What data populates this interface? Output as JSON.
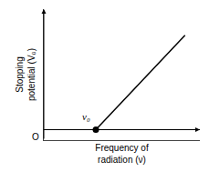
{
  "chart_data": {
    "type": "line",
    "xlabel": "Frequency of\nradiation (ν)",
    "ylabel": "Stopping\npotential (V₀)",
    "series": [
      {
        "type": "line",
        "x": [
          0.35,
          0.95
        ],
        "values": [
          0.0,
          0.72
        ],
        "color": "#000000"
      },
      {
        "type": "scatter",
        "x": [
          0.35
        ],
        "values": [
          0.0
        ],
        "color": "#000000",
        "marker": "circle"
      }
    ],
    "annotations": [
      {
        "text": "ν₀",
        "x": 0.35,
        "y": 0.0
      },
      {
        "text": "O",
        "x": 0,
        "y": 0
      }
    ],
    "xlim": [
      0,
      1.05
    ],
    "ylim": [
      -0.08,
      0.92
    ],
    "xticks": [],
    "yticks": [],
    "grid": false,
    "tick_labels": false
  }
}
